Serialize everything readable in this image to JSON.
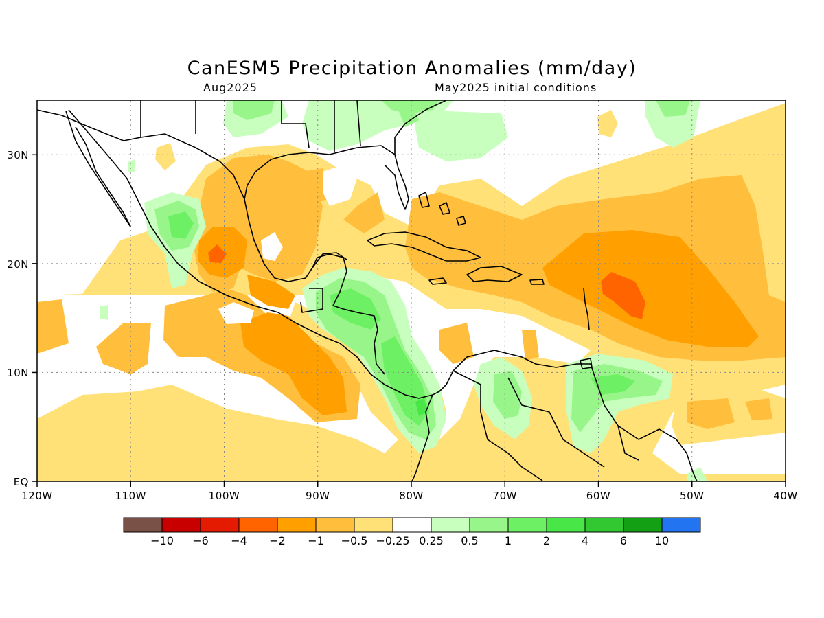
{
  "map": {
    "title": "CanESM5 Precipitation Anomalies (mm/day)",
    "valid_month": "Aug2025",
    "initial_conditions": "May2025 initial conditions",
    "lon_range": [
      -120,
      -40
    ],
    "lat_range": [
      0,
      35
    ],
    "lon_ticks": [
      {
        "value": -120,
        "label": "120W"
      },
      {
        "value": -110,
        "label": "110W"
      },
      {
        "value": -100,
        "label": "100W"
      },
      {
        "value": -90,
        "label": "90W"
      },
      {
        "value": -80,
        "label": "80W"
      },
      {
        "value": -70,
        "label": "70W"
      },
      {
        "value": -60,
        "label": "60W"
      },
      {
        "value": -50,
        "label": "50W"
      },
      {
        "value": -40,
        "label": "40W"
      }
    ],
    "lat_ticks": [
      {
        "value": 0,
        "label": "EQ"
      },
      {
        "value": 10,
        "label": "10N"
      },
      {
        "value": 20,
        "label": "20N"
      },
      {
        "value": 30,
        "label": "30N"
      }
    ],
    "grid": "dotted",
    "colors": {
      "lt_-10": "#7a5146",
      "-10_-6": "#c80000",
      "-6_-4": "#e41b00",
      "-4_-2": "#ff6400",
      "-2_-1": "#ffa000",
      "-1_-0.5": "#ffbe3c",
      "-0.5_-0.25": "#ffe178",
      "-0.25_0.25": "#ffffff",
      "0.25_0.5": "#c8ffbe",
      "0.5_1": "#98f58a",
      "1_2": "#6ef064",
      "2_4": "#48e646",
      "4_6": "#32c832",
      "6_10": "#14a014",
      "gt_10": "#2274f0"
    }
  },
  "colorbar": {
    "labels": [
      "−10",
      "−6",
      "−4",
      "−2",
      "−1",
      "−0.5",
      "−0.25",
      "0.25",
      "0.5",
      "1",
      "2",
      "4",
      "6",
      "10"
    ],
    "colors": [
      "#7a5146",
      "#c80000",
      "#e41b00",
      "#ff6400",
      "#ffa000",
      "#ffbe3c",
      "#ffe178",
      "#ffffff",
      "#c8ffbe",
      "#98f58a",
      "#6ef064",
      "#48e646",
      "#32c832",
      "#14a014",
      "#2274f0"
    ]
  }
}
